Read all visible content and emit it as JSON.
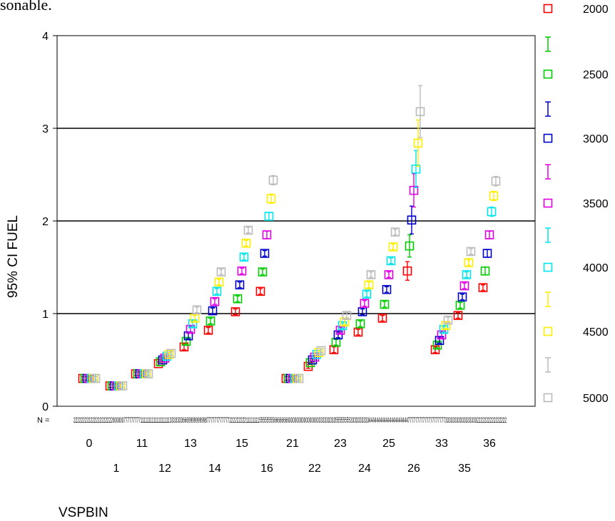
{
  "top_fragment": "sonable.",
  "chart_data": {
    "type": "scatter",
    "subtype": "error-bar",
    "ylabel": "95% CI FUEL",
    "xlabel": "VSPBIN",
    "ylim": [
      0,
      4
    ],
    "yticks": [
      "0",
      "1",
      "2",
      "3",
      "4"
    ],
    "grid": "horizontal lines at 1, 2, 3",
    "n_label": "N =",
    "n_text": "22222222222222222222200000077777777711111111111111111133333336669999999998777777777777222222222111111115555555566666666000000000000000033333333355555555333333333344444444444444444444477777777777777777777333333333333333332222222222222222",
    "categories": [
      "0",
      "1",
      "11",
      "12",
      "13",
      "14",
      "15",
      "16",
      "21",
      "22",
      "23",
      "24",
      "25",
      "26",
      "33",
      "35",
      "36"
    ],
    "category_labels_row1": [
      "0",
      "11",
      "13",
      "15",
      "21",
      "23",
      "25",
      "33",
      "36"
    ],
    "category_labels_row2": [
      "1",
      "12",
      "14",
      "16",
      "22",
      "24",
      "26",
      "35"
    ],
    "legend_placement": "right",
    "legend": [
      {
        "label": "2000",
        "color": "#ff0000"
      },
      {
        "label": "2500",
        "color": "#00cc00"
      },
      {
        "label": "3000",
        "color": "#0000cc"
      },
      {
        "label": "3500",
        "color": "#e000e0"
      },
      {
        "label": "4000",
        "color": "#00e5ee"
      },
      {
        "label": "4500",
        "color": "#ffee00"
      },
      {
        "label": "5000",
        "color": "#bbbbbb"
      }
    ],
    "series": [
      {
        "color": "#ff0000",
        "values": [
          0.3,
          0.22,
          0.35,
          0.46,
          0.64,
          0.82,
          1.02,
          1.24,
          0.3,
          0.43,
          0.61,
          0.8,
          0.95,
          1.46,
          0.61,
          0.98,
          1.28
        ],
        "ci": [
          0.02,
          0.02,
          0.02,
          0.02,
          0.03,
          0.03,
          0.03,
          0.03,
          0.02,
          0.02,
          0.03,
          0.03,
          0.03,
          0.1,
          0.03,
          0.03,
          0.03
        ]
      },
      {
        "color": "#00cc00",
        "values": [
          0.3,
          0.22,
          0.35,
          0.48,
          0.7,
          0.92,
          1.16,
          1.45,
          0.3,
          0.47,
          0.69,
          0.89,
          1.1,
          1.73,
          0.66,
          1.09,
          1.46
        ],
        "ci": [
          0.02,
          0.02,
          0.02,
          0.02,
          0.03,
          0.03,
          0.03,
          0.03,
          0.02,
          0.02,
          0.03,
          0.03,
          0.03,
          0.12,
          0.03,
          0.03,
          0.04
        ]
      },
      {
        "color": "#0000cc",
        "values": [
          0.3,
          0.22,
          0.35,
          0.5,
          0.76,
          1.03,
          1.31,
          1.65,
          0.3,
          0.5,
          0.77,
          1.02,
          1.26,
          2.01,
          0.71,
          1.18,
          1.65
        ],
        "ci": [
          0.02,
          0.02,
          0.02,
          0.02,
          0.03,
          0.03,
          0.03,
          0.03,
          0.02,
          0.02,
          0.03,
          0.03,
          0.03,
          0.15,
          0.03,
          0.03,
          0.04
        ]
      },
      {
        "color": "#e000e0",
        "values": [
          0.3,
          0.22,
          0.35,
          0.52,
          0.83,
          1.13,
          1.46,
          1.85,
          0.3,
          0.53,
          0.82,
          1.11,
          1.42,
          2.33,
          0.77,
          1.3,
          1.85
        ],
        "ci": [
          0.02,
          0.02,
          0.02,
          0.02,
          0.03,
          0.03,
          0.03,
          0.04,
          0.02,
          0.02,
          0.03,
          0.03,
          0.03,
          0.18,
          0.03,
          0.03,
          0.04
        ]
      },
      {
        "color": "#00e5ee",
        "values": [
          0.3,
          0.22,
          0.35,
          0.54,
          0.89,
          1.24,
          1.61,
          2.05,
          0.3,
          0.56,
          0.87,
          1.21,
          1.57,
          2.56,
          0.83,
          1.42,
          2.1
        ],
        "ci": [
          0.02,
          0.02,
          0.02,
          0.02,
          0.03,
          0.03,
          0.03,
          0.04,
          0.02,
          0.02,
          0.03,
          0.03,
          0.03,
          0.2,
          0.03,
          0.03,
          0.05
        ]
      },
      {
        "color": "#ffee00",
        "values": [
          0.3,
          0.22,
          0.35,
          0.56,
          0.95,
          1.34,
          1.76,
          2.24,
          0.3,
          0.58,
          0.91,
          1.31,
          1.72,
          2.84,
          0.87,
          1.55,
          2.27
        ],
        "ci": [
          0.02,
          0.02,
          0.02,
          0.02,
          0.03,
          0.03,
          0.03,
          0.05,
          0.02,
          0.02,
          0.03,
          0.03,
          0.03,
          0.25,
          0.03,
          0.03,
          0.05
        ]
      },
      {
        "color": "#bbbbbb",
        "values": [
          0.3,
          0.22,
          0.35,
          0.57,
          1.04,
          1.45,
          1.9,
          2.44,
          0.3,
          0.6,
          0.98,
          1.42,
          1.88,
          3.18,
          0.93,
          1.67,
          2.43
        ],
        "ci": [
          0.02,
          0.02,
          0.02,
          0.02,
          0.03,
          0.03,
          0.03,
          0.05,
          0.02,
          0.02,
          0.03,
          0.03,
          0.03,
          0.28,
          0.03,
          0.03,
          0.05
        ]
      }
    ]
  }
}
